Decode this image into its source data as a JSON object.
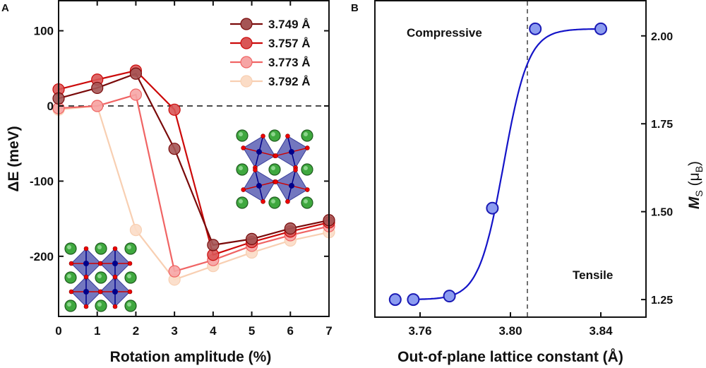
{
  "chart_data": [
    {
      "panel_label": "A",
      "type": "line",
      "xlabel": "Rotation amplitude (%)",
      "ylabel": "ΔE (meV)",
      "xlim": [
        0,
        7
      ],
      "ylim": [
        -280,
        140
      ],
      "xticks": [
        "0",
        "1",
        "2",
        "3",
        "4",
        "5",
        "6",
        "7"
      ],
      "yticks": [
        "100",
        "0",
        "-100",
        "-200"
      ],
      "ytick_values": [
        100,
        0,
        -100,
        -200
      ],
      "reference_line": 0,
      "legend_position": "top-right",
      "x": [
        0,
        1,
        2,
        3,
        4,
        5,
        6,
        7
      ],
      "series": [
        {
          "name": "3.749 Å",
          "line_color": "#7a0a0a",
          "marker_color": "#a55555",
          "values": [
            10,
            24,
            43,
            -57,
            -185,
            -177,
            -163,
            -152
          ]
        },
        {
          "name": "3.757 Å",
          "line_color": "#cc0a0a",
          "marker_color": "#d95656",
          "values": [
            22,
            35,
            47,
            -5,
            -198,
            -181,
            -167,
            -155
          ]
        },
        {
          "name": "3.773 Å",
          "line_color": "#f06464",
          "marker_color": "#f6a5a5",
          "values": [
            -3,
            0,
            15,
            -220,
            -205,
            -186,
            -172,
            -160
          ]
        },
        {
          "name": "3.792 Å",
          "line_color": "#f8cfb2",
          "marker_color": "#fbdcc6",
          "values": [
            -5,
            0,
            -165,
            -231,
            -213,
            -195,
            -179,
            -168
          ]
        }
      ]
    },
    {
      "panel_label": "B",
      "type": "scatter",
      "xlabel": "Out-of-plane lattice constant (Å)",
      "ylabel_main": "M",
      "ylabel_sub": "S",
      "ylabel_unit_open": " (μ",
      "ylabel_unit_sub": "B",
      "ylabel_unit_close": ")",
      "xlim": [
        3.74,
        3.86
      ],
      "ylim": [
        1.2,
        2.1
      ],
      "xticks": [
        "3.76",
        "3.80",
        "3.84"
      ],
      "xtick_values": [
        3.76,
        3.8,
        3.84
      ],
      "yticks": [
        "2.00",
        "1.75",
        "1.50",
        "1.25"
      ],
      "ytick_values": [
        2.0,
        1.75,
        1.5,
        1.25
      ],
      "y_axis_side": "right",
      "reference_x": 3.8075,
      "annotations": [
        "Compressive",
        "Tensile"
      ],
      "points": {
        "x": [
          3.749,
          3.757,
          3.773,
          3.792,
          3.811,
          3.84
        ],
        "y": [
          1.25,
          1.25,
          1.26,
          1.51,
          2.02,
          2.02
        ]
      },
      "fit": {
        "type": "sigmoid",
        "base": 1.25,
        "amplitude": 0.77,
        "x0": 3.797,
        "width": 0.0055,
        "x_range": [
          3.757,
          3.84
        ]
      },
      "colors": {
        "marker": "#8c9cf0",
        "edge": "#1a1ab4",
        "fit": "#1414c8"
      }
    }
  ]
}
